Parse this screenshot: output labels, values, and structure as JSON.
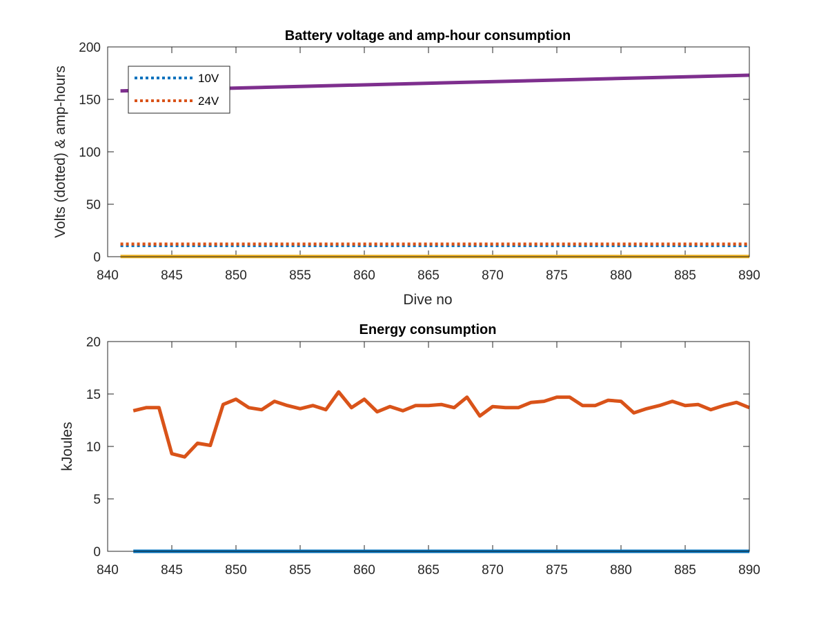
{
  "chart_data": [
    {
      "type": "line",
      "title": "Battery voltage and amp-hour consumption",
      "xlabel": "Dive no",
      "ylabel": "Volts (dotted) & amp-hours",
      "xlim": [
        840,
        890
      ],
      "ylim": [
        0,
        200
      ],
      "xticks": [
        "840",
        "845",
        "850",
        "855",
        "860",
        "865",
        "870",
        "875",
        "880",
        "885",
        "890"
      ],
      "yticks": [
        "0",
        "50",
        "100",
        "150",
        "200"
      ],
      "legend": {
        "position": "top-left",
        "entries": [
          "10V",
          "24V"
        ]
      },
      "series": [
        {
          "name": "10V",
          "style": "dotted",
          "color": "#0072BD",
          "x": [
            841,
            890
          ],
          "y": [
            10.6,
            10.6
          ]
        },
        {
          "name": "24V",
          "style": "dotted",
          "color": "#D95319",
          "x": [
            841,
            890
          ],
          "y": [
            12,
            12
          ]
        },
        {
          "style": "solid",
          "color": "#EDB120",
          "x": [
            841,
            890
          ],
          "y": [
            0.2,
            0.2
          ]
        },
        {
          "style": "solid",
          "color": "#7E2F8E",
          "x": [
            841,
            890
          ],
          "y": [
            158,
            173
          ]
        }
      ]
    },
    {
      "type": "line",
      "title": "Energy consumption",
      "xlabel": "",
      "ylabel": "kJoules",
      "xlim": [
        840,
        890
      ],
      "ylim": [
        0,
        20
      ],
      "xticks": [
        "840",
        "845",
        "850",
        "855",
        "860",
        "865",
        "870",
        "875",
        "880",
        "885",
        "890"
      ],
      "yticks": [
        "0",
        "5",
        "10",
        "15",
        "20"
      ],
      "series": [
        {
          "style": "solid",
          "color": "#D95319",
          "x": [
            842,
            843,
            844,
            845,
            846,
            847,
            848,
            849,
            850,
            851,
            852,
            853,
            854,
            855,
            856,
            857,
            858,
            859,
            860,
            861,
            862,
            863,
            864,
            865,
            866,
            867,
            868,
            869,
            870,
            871,
            872,
            873,
            874,
            875,
            876,
            877,
            878,
            879,
            880,
            881,
            882,
            883,
            884,
            885,
            886,
            887,
            888,
            889,
            890
          ],
          "y": [
            13.4,
            13.7,
            13.7,
            9.3,
            9.0,
            10.3,
            10.1,
            14.0,
            14.5,
            13.7,
            13.5,
            14.3,
            13.9,
            13.6,
            13.9,
            13.5,
            15.2,
            13.7,
            14.5,
            13.3,
            13.8,
            13.4,
            13.9,
            13.9,
            14.0,
            13.7,
            14.7,
            12.9,
            13.8,
            13.7,
            13.7,
            14.2,
            14.3,
            14.7,
            14.7,
            13.9,
            13.9,
            14.4,
            14.3,
            13.2,
            13.6,
            13.9,
            14.3,
            13.9,
            14.0,
            13.5,
            13.9,
            14.2,
            13.7
          ]
        },
        {
          "style": "solid",
          "color": "#0072BD",
          "x": [
            842,
            890
          ],
          "y": [
            0,
            0
          ]
        }
      ]
    }
  ]
}
